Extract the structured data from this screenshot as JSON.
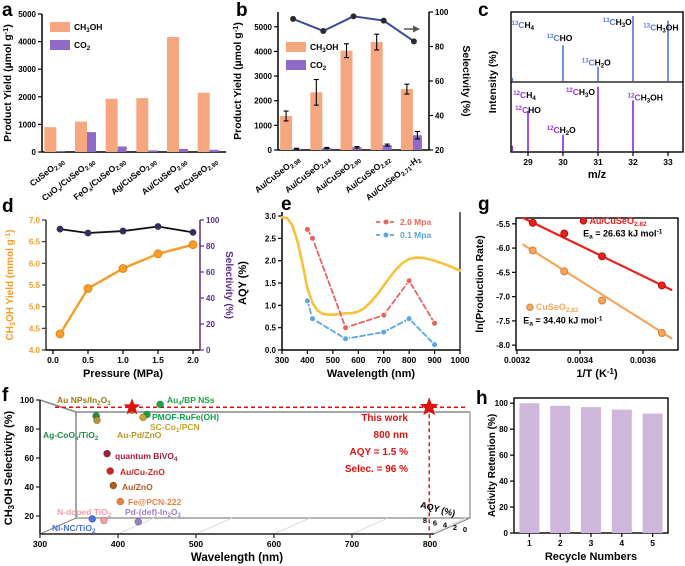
{
  "panels": {
    "a": {
      "label": "a",
      "chart_data": {
        "type": "bar",
        "ylabel": "Product Yield (µmol g^{-1})",
        "ylim": [
          0,
          5000
        ],
        "yticks": [
          0,
          1000,
          2000,
          3000,
          4000,
          5000
        ],
        "categories": [
          "CuSeO_{2.90}",
          "CuO_{x}/CuSeO_{2.90}",
          "FeO_{x}/CuSeO_{2.90}",
          "Ag/CuSeO_{2.90}",
          "Au/CuSeO_{2.90}",
          "Pt/CuSeO_{2.90}"
        ],
        "series": [
          {
            "name": "CH_{3}OH",
            "color": "#F7A780",
            "values": [
              900,
              1100,
              1930,
              1950,
              4170,
              2150
            ]
          },
          {
            "name": "CO_{2}",
            "color": "#8D6BC6",
            "values": [
              30,
              720,
              200,
              60,
              110,
              80
            ]
          }
        ]
      }
    },
    "b": {
      "label": "b",
      "chart_data": {
        "type": "bar",
        "ylabel": "Product Yield (µmol g^{-1})",
        "ylabel_right": "Selectivity (%)",
        "ylim": [
          0,
          5600
        ],
        "yticks": [
          0,
          1000,
          2000,
          3000,
          4000,
          5000
        ],
        "ylim_right": [
          20,
          100
        ],
        "yticks_right": [
          20,
          40,
          60,
          80,
          100
        ],
        "categories": [
          "Au/CuSeO_{2.98}",
          "Au/CuSeO_{2.94}",
          "Au/CuSeO_{2.90}",
          "Au/CuSeO_{2.82}",
          "Au/CuSeO_{2.71}-H_{2}"
        ],
        "series": [
          {
            "name": "CH_{3}OH",
            "color": "#F7A780",
            "values": [
              1380,
              2340,
              4030,
              4380,
              2470
            ],
            "errors": [
              200,
              520,
              280,
              320,
              200
            ]
          },
          {
            "name": "CO_{2}",
            "color": "#8D6BC6",
            "values": [
              50,
              80,
              110,
              200,
              600
            ],
            "errors": [
              20,
              25,
              30,
              40,
              150
            ]
          }
        ],
        "selectivity": {
          "values": [
            96,
            89,
            97.5,
            95,
            83
          ],
          "line_color": "#3A4C96",
          "marker_color": "#2b2b2b"
        }
      }
    },
    "c": {
      "label": "c",
      "chart_data": {
        "type": "mass_spectrum",
        "xlabel": "m/z",
        "ylabel": "Intensity (%)",
        "xticks": [
          29,
          30,
          31,
          32,
          33
        ],
        "top": {
          "color": "#5B7BE8",
          "peaks": [
            [
              28.55,
              0.05
            ],
            [
              30,
              0.55
            ],
            [
              31,
              0.22
            ],
            [
              32,
              1.0
            ],
            [
              33,
              0.93
            ]
          ],
          "labels": [
            {
              "mz": 28.85,
              "f": 0.14,
              "iso": "^{13}C",
              "rest": "H_{4}"
            },
            {
              "mz": 29.9,
              "f": 0.33,
              "iso": "^{13}C",
              "rest": "HO"
            },
            {
              "mz": 30.95,
              "f": 0.68,
              "iso": "^{13}C",
              "rest": "H_{2}O"
            },
            {
              "mz": 31.55,
              "f": 0.1,
              "iso": "^{13}C",
              "rest": "H_{3}O"
            },
            {
              "mz": 33.3,
              "f": 0.18,
              "iso": "^{13}C",
              "rest": "H_{3}OH",
              "an": "end"
            }
          ]
        },
        "bottom": {
          "color": "#9134E8",
          "peaks": [
            [
              28.55,
              0.08
            ],
            [
              29,
              0.62
            ],
            [
              30,
              0.25
            ],
            [
              31,
              0.99
            ],
            [
              32,
              0.78
            ]
          ],
          "labels": [
            {
              "mz": 28.9,
              "f": 0.14,
              "iso": "^{12}C",
              "rest": "H_{4}"
            },
            {
              "mz": 29.0,
              "f": 0.36,
              "iso": "^{12}C",
              "rest": "HO"
            },
            {
              "mz": 29.95,
              "f": 0.64,
              "iso": "^{12}C",
              "rest": "H_{2}O"
            },
            {
              "mz": 30.5,
              "f": 0.1,
              "iso": "^{12}C",
              "rest": "H_{3}O"
            },
            {
              "mz": 32.35,
              "f": 0.18,
              "iso": "^{12}C",
              "rest": "H_{3}OH"
            }
          ]
        }
      }
    },
    "d": {
      "label": "d",
      "chart_data": {
        "type": "dual_line",
        "xlabel": "Pressure (MPa)",
        "ylabel": "CH_{3}OH Yield (mmol g^{-1})",
        "ylabel_right": "Selectivity (%)",
        "x": [
          0.1,
          0.5,
          1.0,
          1.5,
          2.0
        ],
        "yield": [
          4.37,
          5.42,
          5.88,
          6.22,
          6.43
        ],
        "selectivity": [
          93,
          90,
          91.5,
          95,
          90.5
        ],
        "xtick_vals": [
          0,
          0.5,
          1.0,
          1.5,
          2.0
        ],
        "xtick_labels": [
          "0.0",
          "0.5",
          "1.0",
          "1.5",
          "2.0"
        ],
        "ylim_left": [
          4.0,
          7.0
        ],
        "yticks_left": [
          4.0,
          4.5,
          5.0,
          5.5,
          6.0,
          6.5,
          7.0
        ],
        "ylim_right": [
          0,
          100
        ],
        "yticks_right": [
          0,
          20,
          40,
          60,
          80,
          100
        ],
        "yield_color": "#F89B27",
        "sel_line_color": "#111111",
        "sel_marker_color": "#3A2B5F",
        "right_axis_color": "#5B2D8E"
      }
    },
    "e": {
      "label": "e",
      "chart_data": {
        "type": "line",
        "xlabel": "Wavelength (nm)",
        "ylabel": "AQY (%)",
        "xlim": [
          300,
          1000
        ],
        "ylim": [
          0,
          3
        ],
        "xticks": [
          300,
          400,
          500,
          600,
          700,
          800,
          900,
          1000
        ],
        "yticks": [
          "0.0",
          "0.5",
          "1.0",
          "1.5",
          "2.0",
          "2.5",
          "3.0"
        ],
        "absorption": {
          "color": "#F7C13E",
          "x": [
            300,
            320,
            340,
            360,
            380,
            400,
            420,
            440,
            460,
            480,
            500,
            520,
            540,
            560,
            580,
            600,
            620,
            650,
            680,
            710,
            740,
            770,
            800,
            830,
            860,
            900,
            950,
            1000
          ],
          "y": [
            2.97,
            2.95,
            2.8,
            2.45,
            1.95,
            1.38,
            1.05,
            0.88,
            0.81,
            0.79,
            0.79,
            0.8,
            0.82,
            0.82,
            0.83,
            0.86,
            0.92,
            1.08,
            1.28,
            1.52,
            1.75,
            1.93,
            2.04,
            2.07,
            2.06,
            2.0,
            1.9,
            1.78
          ]
        },
        "series": [
          {
            "name": "2.0 Mpa",
            "color": "#E8635F",
            "x": [
              400,
              420,
              550,
              700,
              800,
              900
            ],
            "y": [
              2.7,
              2.5,
              0.5,
              0.78,
              1.55,
              0.6
            ]
          },
          {
            "name": "0.1 Mpa",
            "color": "#5BA7DC",
            "x": [
              400,
              420,
              550,
              700,
              800,
              900
            ],
            "y": [
              1.1,
              0.7,
              0.25,
              0.4,
              0.7,
              0.12
            ]
          }
        ]
      }
    },
    "f": {
      "label": "f",
      "chart_data": {
        "type": "scatter3d",
        "xlabel": "Wavelength (nm)",
        "ylabel": "CH_{3}OH Selectivity (%)",
        "zlabel": "AQY (%)",
        "xticks": [
          300,
          400,
          500,
          600,
          700,
          800
        ],
        "yticks": [
          20,
          40,
          60,
          80,
          100
        ],
        "ztick_labels": [
          "8",
          "6",
          "4",
          "2",
          "0"
        ],
        "points": [
          {
            "label": "Au NPs/In_{2}O_{3}",
            "x": 418,
            "y": 93,
            "color": "#9A7D10",
            "lx": 57,
            "ly": 19
          },
          {
            "label": "Au_{4}/BP NSs",
            "x": 454,
            "y": 97,
            "color": "#21A04C",
            "lx": 167,
            "ly": 19
          },
          {
            "label": "PMOF-RuFe(OH)",
            "x": 437,
            "y": 90,
            "color": "#0FA04A",
            "lx": 152,
            "ly": 36
          },
          {
            "label": "SC-Co_{1}/PCN",
            "x": 432,
            "y": 88,
            "color": "#C9A227",
            "lx": 150,
            "ly": 46
          },
          {
            "label": "Ag-CoO_{x}/TiO_{2}",
            "x": 372,
            "y": 89,
            "color": "#1E8C46",
            "lx": 43,
            "ly": 54
          },
          {
            "label": "Au-Pd/ZnO",
            "x": 373,
            "y": 86,
            "color": "#B8962B",
            "lx": 117,
            "ly": 54
          },
          {
            "label": "quantum BiVO_{4}",
            "x": 386,
            "y": 63,
            "color": "#A31C3C",
            "lx": 115,
            "ly": 75
          },
          {
            "label": "Au/Cu-ZnO",
            "x": 390,
            "y": 51,
            "color": "#D42024",
            "lx": 120,
            "ly": 91
          },
          {
            "label": "Au/ZnO",
            "x": 394,
            "y": 41,
            "color": "#B55A1E",
            "lx": 122,
            "ly": 106
          },
          {
            "label": "Fe@PCN-222",
            "x": 403,
            "y": 30,
            "color": "#F08040",
            "lx": 128,
            "ly": 121
          },
          {
            "label": "N-doped TiO_{2}",
            "x": 382,
            "y": 17,
            "color": "#F2A0A8",
            "lx": 57,
            "ly": 131
          },
          {
            "label": "Pd-(def)-In_{2}O_{3}",
            "x": 426,
            "y": 16,
            "color": "#9B7FC4",
            "lx": 125,
            "ly": 131
          },
          {
            "label": "Ni-NC/TiO_{2}",
            "x": 367,
            "y": 18,
            "color": "#4A72E8",
            "lx": 52,
            "ly": 147
          }
        ],
        "this_work": {
          "color": "#E01010",
          "lines": [
            "This work",
            "800 nm",
            "AQY = 1.5 %",
            "Selec. = 96 %"
          ],
          "stars_nm": [
            418,
            799
          ],
          "selectivity_level": 95
        }
      }
    },
    "g": {
      "label": "g",
      "chart_data": {
        "type": "arrhenius",
        "xlabel": "1/T (K^{-1})",
        "ylabel": "ln(Production Rate)",
        "xtick_vals": [
          0.0032,
          0.0034,
          0.0036
        ],
        "xtick_labels": [
          "0.0032",
          "0.0034",
          "0.0036"
        ],
        "yticks": [
          -5.5,
          -6.0,
          -6.5,
          -7.0,
          -7.5,
          -8.0
        ],
        "series": [
          {
            "name": "Au/CuSeO_{2.82}",
            "color": "#E8211D",
            "edge": "#B01512",
            "ea_label": "E_{a} = 26.63 kJ mol^{-1}",
            "points": [
              [
                0.00325,
                -5.48
              ],
              [
                0.00335,
                -5.7
              ],
              [
                0.00347,
                -6.17
              ],
              [
                0.00366,
                -6.77
              ]
            ],
            "fit": [
              [
                0.00322,
                -5.38
              ],
              [
                0.00369,
                -6.86
              ]
            ],
            "name_xy": [
              0.00343,
              -5.5
            ],
            "ea_xy": [
              0.00341,
              -5.76
            ]
          },
          {
            "name": "CuSeO_{2.82}",
            "color": "#F7A55E",
            "edge": "#D9813A",
            "ea_label": "E_{a} = 34.40 kJ mol^{-1}",
            "points": [
              [
                0.00325,
                -6.05
              ],
              [
                0.00335,
                -6.48
              ],
              [
                0.00347,
                -7.08
              ],
              [
                0.00366,
                -7.75
              ]
            ],
            "fit": [
              [
                0.00322,
                -5.93
              ],
              [
                0.00369,
                -7.86
              ]
            ],
            "name_xy": [
              0.00326,
              -7.28
            ],
            "ea_xy": [
              0.00322,
              -7.55
            ]
          }
        ]
      }
    },
    "h": {
      "label": "h",
      "chart_data": {
        "type": "bar",
        "xlabel": "Recycle Numbers",
        "ylabel": "Activity Retention (%)",
        "categories": [
          "1",
          "2",
          "3",
          "4",
          "5"
        ],
        "values": [
          100,
          98,
          97,
          95,
          92
        ],
        "bar_color": "#CDB8DC",
        "ylim": [
          0,
          104
        ],
        "yticks": [
          0,
          20,
          40,
          60,
          80,
          100
        ]
      }
    }
  }
}
